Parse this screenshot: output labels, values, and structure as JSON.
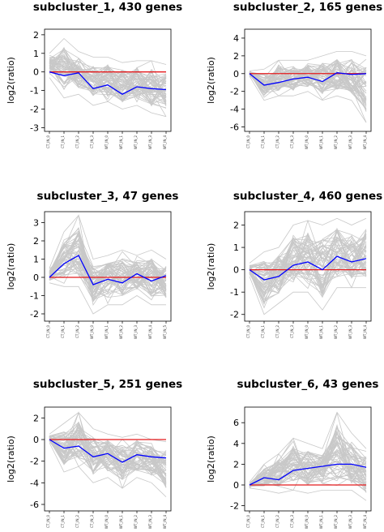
{
  "chart_data": [
    {
      "type": "line",
      "title": "subcluster_1, 430 genes",
      "xlabel": "",
      "ylabel": "log2(ratio)",
      "ylim": [
        -3.2,
        2.3
      ],
      "yticks": [
        2,
        1,
        0,
        -1,
        -2,
        -3
      ],
      "categories": [
        "CT_IN_0",
        "CT_IN_1",
        "CT_IN_2",
        "CT_IN_3",
        "WT_IN_0",
        "WT_IN_1",
        "WT_IN_2",
        "WT_IN_3",
        "WT_IN_4"
      ],
      "reference_line": {
        "y": 0,
        "color": "#e41a1c"
      },
      "series": [
        {
          "role": "mean",
          "color": "#0000ff",
          "values": [
            0,
            -0.2,
            -0.05,
            -0.9,
            -0.7,
            -1.2,
            -0.8,
            -0.9,
            -0.95
          ]
        }
      ],
      "gene_profiles": {
        "color": "#c8c8c8",
        "band": [
          [
            -0.3,
            1.0
          ],
          [
            -1.4,
            1.8
          ],
          [
            -1.2,
            1.1
          ],
          [
            -1.8,
            0.8
          ],
          [
            -1.6,
            0.8
          ],
          [
            -2.0,
            0.5
          ],
          [
            -1.8,
            0.6
          ],
          [
            -2.2,
            0.6
          ],
          [
            -2.4,
            0.4
          ]
        ]
      }
    },
    {
      "type": "line",
      "title": "subcluster_2, 165 genes",
      "xlabel": "",
      "ylabel": "log2(ratio)",
      "ylim": [
        -6.5,
        5
      ],
      "yticks": [
        4,
        2,
        0,
        -2,
        -4,
        -6
      ],
      "categories": [
        "CT_IN_0",
        "CT_IN_1",
        "CT_IN_2",
        "CT_IN_3",
        "WT_IN_0",
        "WT_IN_1",
        "WT_IN_2",
        "WT_IN_3",
        "WT_IN_4"
      ],
      "reference_line": {
        "y": 0,
        "color": "#e41a1c"
      },
      "series": [
        {
          "role": "mean",
          "color": "#0000ff",
          "values": [
            0,
            -1.3,
            -1.0,
            -0.6,
            -0.4,
            -0.9,
            0.1,
            -0.1,
            0.0
          ]
        }
      ],
      "gene_profiles": {
        "color": "#c8c8c8",
        "band": [
          [
            -0.3,
            0.3
          ],
          [
            -3.0,
            0.5
          ],
          [
            -2.5,
            1.5
          ],
          [
            -2.5,
            1.5
          ],
          [
            -2.0,
            1.5
          ],
          [
            -3.0,
            2.0
          ],
          [
            -2.5,
            2.5
          ],
          [
            -3.0,
            2.5
          ],
          [
            -5.5,
            2.0
          ]
        ]
      }
    },
    {
      "type": "line",
      "title": "subcluster_3, 47 genes",
      "xlabel": "",
      "ylabel": "log2(ratio)",
      "ylim": [
        -2.4,
        3.6
      ],
      "yticks": [
        3,
        2,
        1,
        0,
        -1,
        -2
      ],
      "categories": [
        "CT_IN_0",
        "CT_IN_1",
        "CT_IN_2",
        "WT_IN_0",
        "WT_IN_1",
        "WT_IN_2",
        "WT_IN_3",
        "WT_IN_4",
        "WT_IN_5"
      ],
      "reference_line": {
        "y": 0,
        "color": "#e41a1c"
      },
      "series": [
        {
          "role": "mean",
          "color": "#0000ff",
          "values": [
            0,
            0.75,
            1.2,
            -0.4,
            -0.1,
            -0.3,
            0.2,
            -0.2,
            0.1
          ]
        }
      ],
      "gene_profiles": {
        "color": "#c8c8c8",
        "band": [
          [
            -0.3,
            0.5
          ],
          [
            -0.5,
            2.5
          ],
          [
            -0.5,
            3.4
          ],
          [
            -2.0,
            1.0
          ],
          [
            -1.5,
            1.2
          ],
          [
            -1.5,
            1.5
          ],
          [
            -1.0,
            1.2
          ],
          [
            -1.5,
            1.5
          ],
          [
            -1.5,
            1.0
          ]
        ]
      }
    },
    {
      "type": "line",
      "title": "subcluster_4, 460 genes",
      "xlabel": "",
      "ylabel": "log2(ratio)",
      "ylim": [
        -2.3,
        2.6
      ],
      "yticks": [
        2,
        1,
        0,
        -1,
        -2
      ],
      "categories": [
        "CT_IN_0",
        "CT_IN_1",
        "CT_IN_2",
        "CT_IN_3",
        "WT_IN_0",
        "WT_IN_1",
        "WT_IN_2",
        "WT_IN_3",
        "WT_IN_4"
      ],
      "reference_line": {
        "y": 0,
        "color": "#e41a1c"
      },
      "series": [
        {
          "role": "mean",
          "color": "#0000ff",
          "values": [
            0,
            -0.45,
            -0.3,
            0.2,
            0.35,
            0.0,
            0.6,
            0.35,
            0.5
          ]
        }
      ],
      "gene_profiles": {
        "color": "#c8c8c8",
        "band": [
          [
            -0.3,
            0.3
          ],
          [
            -2.0,
            0.8
          ],
          [
            -1.5,
            1.0
          ],
          [
            -1.0,
            2.0
          ],
          [
            -1.0,
            2.2
          ],
          [
            -1.8,
            2.0
          ],
          [
            -0.8,
            2.3
          ],
          [
            -0.8,
            2.0
          ],
          [
            -0.8,
            2.3
          ]
        ]
      }
    },
    {
      "type": "line",
      "title": "subcluster_5, 251 genes",
      "xlabel": "",
      "ylabel": "log2(ratio)",
      "ylim": [
        -6.6,
        3
      ],
      "yticks": [
        2,
        0,
        -2,
        -4,
        -6
      ],
      "categories": [
        "CT_IN_0",
        "CT_IN_1",
        "CT_IN_2",
        "CT_IN_3",
        "WT_IN_0",
        "WT_IN_1",
        "WT_IN_2",
        "WT_IN_3",
        "WT_IN_4"
      ],
      "reference_line": {
        "y": 0,
        "color": "#e41a1c"
      },
      "series": [
        {
          "role": "mean",
          "color": "#0000ff",
          "values": [
            0,
            -0.8,
            -0.6,
            -1.6,
            -1.3,
            -2.1,
            -1.4,
            -1.6,
            -1.7
          ]
        }
      ],
      "gene_profiles": {
        "color": "#c8c8c8",
        "band": [
          [
            -0.3,
            0.5
          ],
          [
            -3.0,
            1.5
          ],
          [
            -2.5,
            2.5
          ],
          [
            -4.0,
            1.0
          ],
          [
            -3.5,
            0.5
          ],
          [
            -4.5,
            0.2
          ],
          [
            -3.5,
            0.5
          ],
          [
            -4.0,
            0.0
          ],
          [
            -5.3,
            -0.2
          ]
        ]
      }
    },
    {
      "type": "line",
      "title": "subcluster_6, 43 genes",
      "xlabel": "",
      "ylabel": "log2(ratio)",
      "ylim": [
        -2.5,
        7.5
      ],
      "yticks": [
        6,
        4,
        2,
        0,
        -2
      ],
      "categories": [
        "CT_IN_0",
        "CT_IN_1",
        "CT_IN_2",
        "CT_IN_3",
        "WT_IN_0",
        "WT_IN_1",
        "WT_IN_2",
        "WT_IN_3",
        "WT_IN_4"
      ],
      "reference_line": {
        "y": 0,
        "color": "#e41a1c"
      },
      "series": [
        {
          "role": "mean",
          "color": "#0000ff",
          "values": [
            0,
            0.7,
            0.5,
            1.4,
            1.6,
            1.8,
            2.0,
            2.0,
            1.7
          ]
        }
      ],
      "gene_profiles": {
        "color": "#c8c8c8",
        "band": [
          [
            -0.3,
            0.3
          ],
          [
            -0.5,
            2.0
          ],
          [
            -0.8,
            3.0
          ],
          [
            -0.5,
            4.5
          ],
          [
            -0.8,
            4.0
          ],
          [
            -0.5,
            3.5
          ],
          [
            -0.5,
            7.0
          ],
          [
            -0.5,
            5.0
          ],
          [
            -1.5,
            3.5
          ]
        ]
      }
    }
  ]
}
